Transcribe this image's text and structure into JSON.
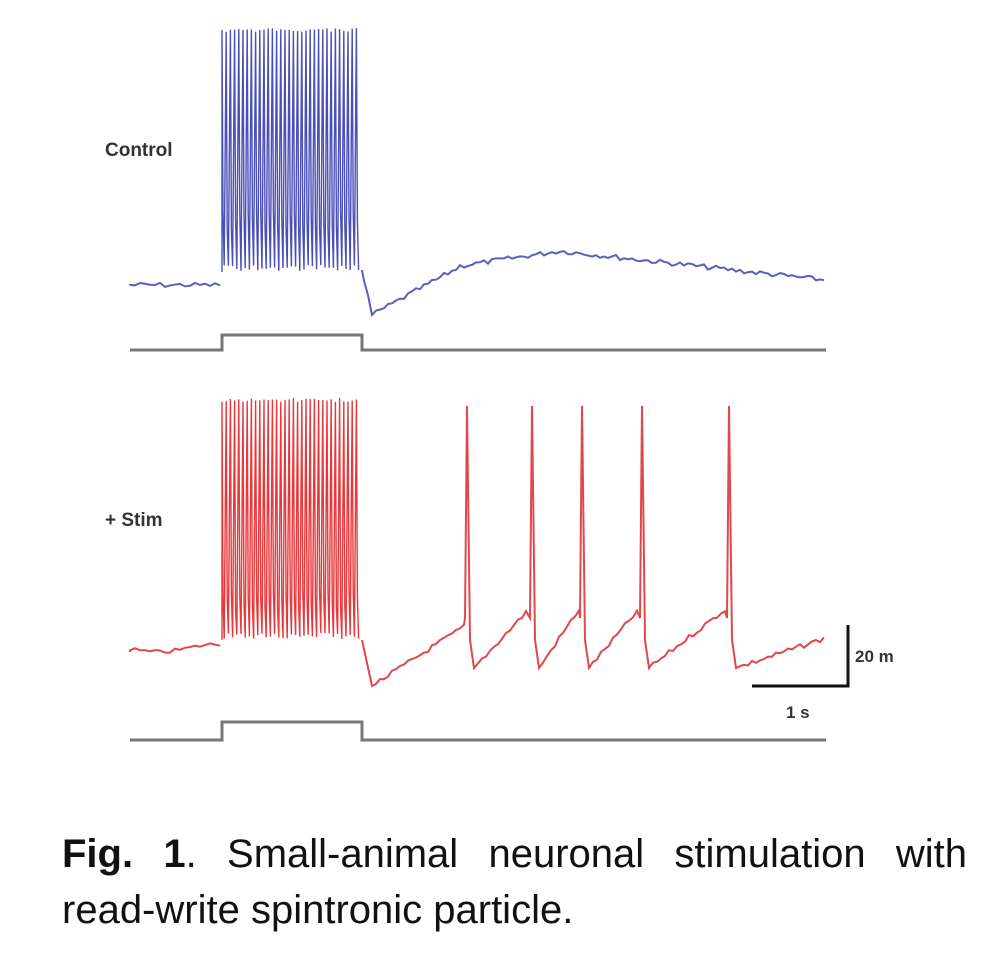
{
  "figure": {
    "traces": [
      {
        "label": "Control"
      },
      {
        "label": "+ Stim"
      }
    ],
    "scale_bar": {
      "vertical": "20 m",
      "horizontal": "1 s"
    },
    "caption": {
      "label": "Fig. 1",
      "text": ". Small-animal neuronal stimulation with read-write spintronic particle."
    }
  }
}
